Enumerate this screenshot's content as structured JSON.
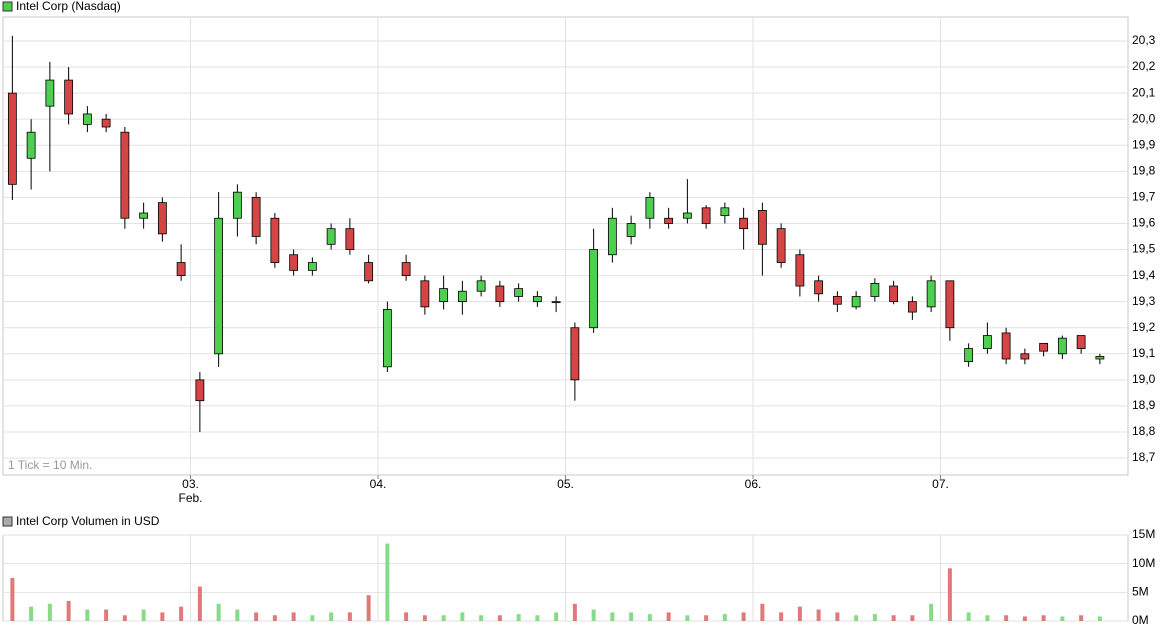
{
  "chart_data": [
    {
      "type": "candlestick",
      "title": "Intel Corp (Nasdaq)",
      "annotation": "1 Tick = 10 Min.",
      "month_label": "Feb.",
      "up_color": "#4fcf4f",
      "down_color": "#d64545",
      "x": [
        0.5,
        1.5,
        2.5,
        3.5,
        4.5,
        5.5,
        6.5,
        7.5,
        8.5,
        9.5,
        10.5,
        11.5,
        12.5,
        13.5,
        14.5,
        15.5,
        16.5,
        17.5,
        18.5,
        19.5,
        20.5,
        21.5,
        22.5,
        23.5,
        24.5,
        25.5,
        26.5,
        27.5,
        28.5,
        29.5,
        30.5,
        31.5,
        32.5,
        33.5,
        34.5,
        35.5,
        36.5,
        37.5,
        38.5,
        39.5,
        40.5,
        41.5,
        42.5,
        43.5,
        44.5,
        45.5,
        46.5,
        47.5,
        48.5,
        49.5,
        50.5,
        51.5,
        52.5,
        53.5,
        54.5,
        55.5,
        56.5,
        57.5,
        58.5
      ],
      "open": [
        20.1,
        19.85,
        20.05,
        20.15,
        19.98,
        20.0,
        19.95,
        19.62,
        19.68,
        19.45,
        19.0,
        19.1,
        19.62,
        19.7,
        19.62,
        19.48,
        19.42,
        19.52,
        19.58,
        19.45,
        19.05,
        19.45,
        19.38,
        19.3,
        19.3,
        19.34,
        19.36,
        19.32,
        19.3,
        19.3,
        19.2,
        19.2,
        19.48,
        19.55,
        19.62,
        19.62,
        19.62,
        19.66,
        19.63,
        19.62,
        19.65,
        19.58,
        19.48,
        19.38,
        19.32,
        19.28,
        19.32,
        19.36,
        19.3,
        19.28,
        19.38,
        19.07,
        19.12,
        19.18,
        19.1,
        19.14,
        19.1,
        19.17,
        19.08
      ],
      "high": [
        20.32,
        20.0,
        20.22,
        20.2,
        20.05,
        20.02,
        19.97,
        19.68,
        19.7,
        19.52,
        19.03,
        19.72,
        19.75,
        19.72,
        19.64,
        19.5,
        19.47,
        19.6,
        19.62,
        19.48,
        19.3,
        19.48,
        19.4,
        19.4,
        19.38,
        19.4,
        19.38,
        19.37,
        19.34,
        19.32,
        19.22,
        19.58,
        19.66,
        19.63,
        19.72,
        19.66,
        19.77,
        19.67,
        19.68,
        19.66,
        19.68,
        19.6,
        19.5,
        19.4,
        19.34,
        19.34,
        19.39,
        19.38,
        19.32,
        19.4,
        19.38,
        19.14,
        19.22,
        19.2,
        19.12,
        19.14,
        19.17,
        19.17,
        19.1
      ],
      "low": [
        19.69,
        19.73,
        19.8,
        19.98,
        19.95,
        19.95,
        19.58,
        19.58,
        19.53,
        19.38,
        18.8,
        19.05,
        19.55,
        19.52,
        19.43,
        19.4,
        19.4,
        19.5,
        19.48,
        19.37,
        19.03,
        19.38,
        19.25,
        19.27,
        19.25,
        19.32,
        19.28,
        19.3,
        19.28,
        19.26,
        18.92,
        19.18,
        19.45,
        19.52,
        19.58,
        19.58,
        19.6,
        19.58,
        19.6,
        19.5,
        19.4,
        19.43,
        19.32,
        19.3,
        19.26,
        19.27,
        19.3,
        19.29,
        19.23,
        19.26,
        19.15,
        19.05,
        19.1,
        19.06,
        19.06,
        19.09,
        19.08,
        19.1,
        19.06
      ],
      "close": [
        19.75,
        19.95,
        20.15,
        20.02,
        20.02,
        19.97,
        19.62,
        19.64,
        19.56,
        19.4,
        18.92,
        19.62,
        19.72,
        19.55,
        19.45,
        19.42,
        19.45,
        19.58,
        19.5,
        19.38,
        19.27,
        19.4,
        19.28,
        19.35,
        19.34,
        19.38,
        19.3,
        19.35,
        19.32,
        19.3,
        19.0,
        19.5,
        19.62,
        19.6,
        19.7,
        19.6,
        19.64,
        19.6,
        19.66,
        19.58,
        19.52,
        19.45,
        19.36,
        19.33,
        19.29,
        19.32,
        19.37,
        19.3,
        19.26,
        19.38,
        19.2,
        19.12,
        19.17,
        19.08,
        19.08,
        19.11,
        19.16,
        19.12,
        19.09
      ],
      "xlim": [
        0,
        60
      ],
      "xticks": [
        {
          "value": 10,
          "label": "03."
        },
        {
          "value": 20,
          "label": "04."
        },
        {
          "value": 30,
          "label": "05."
        },
        {
          "value": 40,
          "label": "06."
        },
        {
          "value": 50,
          "label": "07."
        }
      ],
      "ylim": [
        18.635,
        20.392
      ],
      "yticks": [
        {
          "value": 18.7,
          "label": "18,7"
        },
        {
          "value": 18.8,
          "label": "18,8"
        },
        {
          "value": 18.9,
          "label": "18,9"
        },
        {
          "value": 19.0,
          "label": "19,0"
        },
        {
          "value": 19.1,
          "label": "19,1"
        },
        {
          "value": 19.2,
          "label": "19,2"
        },
        {
          "value": 19.3,
          "label": "19,3"
        },
        {
          "value": 19.4,
          "label": "19,4"
        },
        {
          "value": 19.5,
          "label": "19,5"
        },
        {
          "value": 19.6,
          "label": "19,6"
        },
        {
          "value": 19.7,
          "label": "19,7"
        },
        {
          "value": 19.8,
          "label": "19,8"
        },
        {
          "value": 19.9,
          "label": "19,9"
        },
        {
          "value": 20.0,
          "label": "20,0"
        },
        {
          "value": 20.1,
          "label": "20,1"
        },
        {
          "value": 20.2,
          "label": "20,2"
        },
        {
          "value": 20.3,
          "label": "20,3"
        }
      ],
      "grid": true
    },
    {
      "type": "bar",
      "title": "Intel Corp Volumen in USD",
      "up_color": "#86dc86",
      "down_color": "#e07a7a",
      "x": [
        0.5,
        1.5,
        2.5,
        3.5,
        4.5,
        5.5,
        6.5,
        7.5,
        8.5,
        9.5,
        10.5,
        11.5,
        12.5,
        13.5,
        14.5,
        15.5,
        16.5,
        17.5,
        18.5,
        19.5,
        20.5,
        21.5,
        22.5,
        23.5,
        24.5,
        25.5,
        26.5,
        27.5,
        28.5,
        29.5,
        30.5,
        31.5,
        32.5,
        33.5,
        34.5,
        35.5,
        36.5,
        37.5,
        38.5,
        39.5,
        40.5,
        41.5,
        42.5,
        43.5,
        44.5,
        45.5,
        46.5,
        47.5,
        48.5,
        49.5,
        50.5,
        51.5,
        52.5,
        53.5,
        54.5,
        55.5,
        56.5,
        57.5,
        58.5
      ],
      "values": [
        7500000,
        2500000,
        3000000,
        3500000,
        2000000,
        2000000,
        1000000,
        2000000,
        1500000,
        2500000,
        6000000,
        3000000,
        2000000,
        1500000,
        1000000,
        1500000,
        1000000,
        1500000,
        1500000,
        4500000,
        13500000,
        1500000,
        1000000,
        1000000,
        1500000,
        1000000,
        1000000,
        1200000,
        1000000,
        1500000,
        3000000,
        2000000,
        1500000,
        1500000,
        1200000,
        1500000,
        1000000,
        1000000,
        1200000,
        1500000,
        3000000,
        1500000,
        2500000,
        2000000,
        1500000,
        1000000,
        1200000,
        1000000,
        1000000,
        3000000,
        9200000,
        1500000,
        1000000,
        1000000,
        800000,
        1000000,
        800000,
        1000000,
        800000
      ],
      "xlim": [
        0,
        60
      ],
      "ylim": [
        0,
        15000000
      ],
      "yticks": [
        {
          "value": 0,
          "label": "0M"
        },
        {
          "value": 5000000,
          "label": "5M"
        },
        {
          "value": 10000000,
          "label": "10M"
        },
        {
          "value": 15000000,
          "label": "15M"
        }
      ],
      "grid": true
    }
  ]
}
